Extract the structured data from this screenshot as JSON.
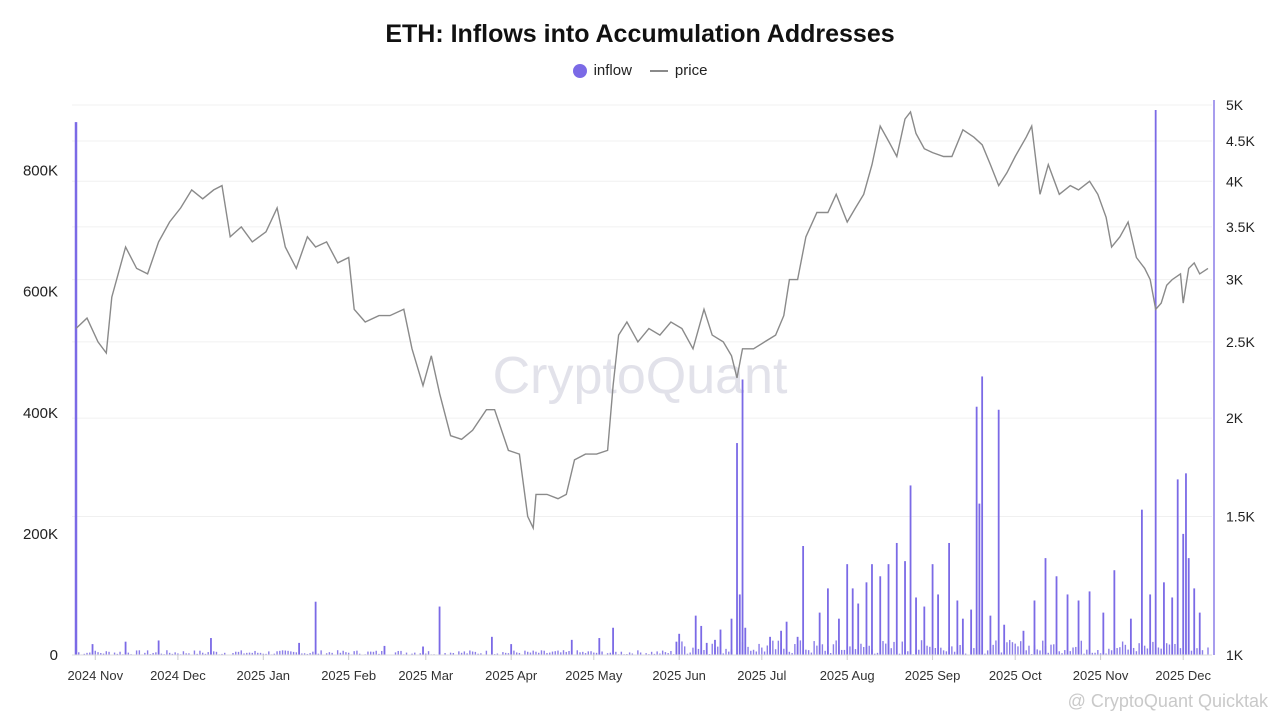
{
  "chart_data": {
    "type": "bar+line",
    "title": "ETH: Inflows into Accumulation Addresses",
    "legend": [
      {
        "name": "inflow",
        "marker": "dot",
        "color": "#7b6ae6"
      },
      {
        "name": "price",
        "marker": "line",
        "color": "#8a8a8a"
      }
    ],
    "legend_position": "top-center",
    "watermark": "CryptoQuant",
    "footer_note": "@ CryptoQuant Quicktak",
    "x_axis": {
      "start": "2024-10-25",
      "end": "2025-12-10",
      "tick_labels": [
        "2024 Nov",
        "2024 Dec",
        "2025 Jan",
        "2025 Feb",
        "2025 Mar",
        "2025 Apr",
        "2025 May",
        "2025 Jun",
        "2025 Jul",
        "2025 Aug",
        "2025 Sep",
        "2025 Oct",
        "2025 Nov",
        "2025 Dec"
      ],
      "tick_dates": [
        "2024-11-01",
        "2024-12-01",
        "2025-01-01",
        "2025-02-01",
        "2025-03-01",
        "2025-04-01",
        "2025-05-01",
        "2025-06-01",
        "2025-07-01",
        "2025-08-01",
        "2025-09-01",
        "2025-10-01",
        "2025-11-01",
        "2025-12-01"
      ]
    },
    "y_left": {
      "label": "inflow",
      "range": [
        0,
        900000
      ],
      "ticks": [
        0,
        200000,
        400000,
        600000,
        800000
      ],
      "tick_labels": [
        "0",
        "200K",
        "400K",
        "600K",
        "800K"
      ]
    },
    "y_right": {
      "label": "price",
      "scale": "log",
      "range": [
        1000,
        5000
      ],
      "ticks": [
        1000,
        1500,
        2000,
        2500,
        3000,
        3500,
        4000,
        4500,
        5000
      ],
      "tick_labels": [
        "1K",
        "1.5K",
        "2K",
        "2.5K",
        "3K",
        "3.5K",
        "4K",
        "4.5K",
        "5K"
      ]
    },
    "price_series": {
      "name": "price",
      "points": [
        [
          "2024-10-25",
          2600
        ],
        [
          "2024-10-29",
          2680
        ],
        [
          "2024-11-02",
          2500
        ],
        [
          "2024-11-05",
          2420
        ],
        [
          "2024-11-07",
          2850
        ],
        [
          "2024-11-12",
          3300
        ],
        [
          "2024-11-16",
          3100
        ],
        [
          "2024-11-20",
          3050
        ],
        [
          "2024-11-24",
          3350
        ],
        [
          "2024-11-28",
          3550
        ],
        [
          "2024-12-02",
          3700
        ],
        [
          "2024-12-06",
          3900
        ],
        [
          "2024-12-10",
          3800
        ],
        [
          "2024-12-14",
          3900
        ],
        [
          "2024-12-17",
          3950
        ],
        [
          "2024-12-20",
          3400
        ],
        [
          "2024-12-24",
          3500
        ],
        [
          "2024-12-28",
          3350
        ],
        [
          "2025-01-02",
          3450
        ],
        [
          "2025-01-06",
          3700
        ],
        [
          "2025-01-09",
          3300
        ],
        [
          "2025-01-13",
          3100
        ],
        [
          "2025-01-17",
          3400
        ],
        [
          "2025-01-20",
          3300
        ],
        [
          "2025-01-24",
          3350
        ],
        [
          "2025-01-28",
          3150
        ],
        [
          "2025-02-01",
          3200
        ],
        [
          "2025-02-03",
          2750
        ],
        [
          "2025-02-07",
          2650
        ],
        [
          "2025-02-12",
          2700
        ],
        [
          "2025-02-16",
          2700
        ],
        [
          "2025-02-21",
          2750
        ],
        [
          "2025-02-24",
          2450
        ],
        [
          "2025-02-28",
          2200
        ],
        [
          "2025-03-03",
          2400
        ],
        [
          "2025-03-06",
          2150
        ],
        [
          "2025-03-10",
          1900
        ],
        [
          "2025-03-14",
          1880
        ],
        [
          "2025-03-18",
          1930
        ],
        [
          "2025-03-23",
          2050
        ],
        [
          "2025-03-26",
          2050
        ],
        [
          "2025-03-31",
          1820
        ],
        [
          "2025-04-04",
          1800
        ],
        [
          "2025-04-07",
          1500
        ],
        [
          "2025-04-09",
          1450
        ],
        [
          "2025-04-10",
          1600
        ],
        [
          "2025-04-14",
          1600
        ],
        [
          "2025-04-18",
          1580
        ],
        [
          "2025-04-21",
          1600
        ],
        [
          "2025-04-24",
          1770
        ],
        [
          "2025-04-28",
          1800
        ],
        [
          "2025-05-02",
          1800
        ],
        [
          "2025-05-06",
          1820
        ],
        [
          "2025-05-08",
          2200
        ],
        [
          "2025-05-10",
          2550
        ],
        [
          "2025-05-13",
          2650
        ],
        [
          "2025-05-17",
          2500
        ],
        [
          "2025-05-21",
          2600
        ],
        [
          "2025-05-25",
          2550
        ],
        [
          "2025-05-29",
          2650
        ],
        [
          "2025-06-02",
          2600
        ],
        [
          "2025-06-06",
          2450
        ],
        [
          "2025-06-10",
          2750
        ],
        [
          "2025-06-13",
          2550
        ],
        [
          "2025-06-17",
          2500
        ],
        [
          "2025-06-20",
          2400
        ],
        [
          "2025-06-22",
          2250
        ],
        [
          "2025-06-24",
          2450
        ],
        [
          "2025-06-28",
          2450
        ],
        [
          "2025-07-02",
          2500
        ],
        [
          "2025-07-06",
          2550
        ],
        [
          "2025-07-09",
          2700
        ],
        [
          "2025-07-11",
          3000
        ],
        [
          "2025-07-14",
          3000
        ],
        [
          "2025-07-17",
          3400
        ],
        [
          "2025-07-21",
          3650
        ],
        [
          "2025-07-25",
          3650
        ],
        [
          "2025-07-28",
          3850
        ],
        [
          "2025-08-01",
          3550
        ],
        [
          "2025-08-04",
          3700
        ],
        [
          "2025-08-07",
          3850
        ],
        [
          "2025-08-10",
          4200
        ],
        [
          "2025-08-13",
          4700
        ],
        [
          "2025-08-16",
          4500
        ],
        [
          "2025-08-19",
          4300
        ],
        [
          "2025-08-22",
          4800
        ],
        [
          "2025-08-24",
          4900
        ],
        [
          "2025-08-26",
          4600
        ],
        [
          "2025-08-29",
          4400
        ],
        [
          "2025-09-01",
          4350
        ],
        [
          "2025-09-05",
          4300
        ],
        [
          "2025-09-08",
          4300
        ],
        [
          "2025-09-12",
          4650
        ],
        [
          "2025-09-16",
          4550
        ],
        [
          "2025-09-19",
          4450
        ],
        [
          "2025-09-22",
          4200
        ],
        [
          "2025-09-25",
          3950
        ],
        [
          "2025-09-28",
          4100
        ],
        [
          "2025-10-01",
          4300
        ],
        [
          "2025-10-05",
          4550
        ],
        [
          "2025-10-07",
          4700
        ],
        [
          "2025-10-10",
          3850
        ],
        [
          "2025-10-13",
          4200
        ],
        [
          "2025-10-17",
          3850
        ],
        [
          "2025-10-21",
          3950
        ],
        [
          "2025-10-24",
          3900
        ],
        [
          "2025-10-28",
          4000
        ],
        [
          "2025-10-31",
          3850
        ],
        [
          "2025-11-03",
          3600
        ],
        [
          "2025-11-05",
          3300
        ],
        [
          "2025-11-08",
          3400
        ],
        [
          "2025-11-11",
          3550
        ],
        [
          "2025-11-14",
          3200
        ],
        [
          "2025-11-17",
          3100
        ],
        [
          "2025-11-19",
          3000
        ],
        [
          "2025-11-21",
          2750
        ],
        [
          "2025-11-23",
          2800
        ],
        [
          "2025-11-25",
          2950
        ],
        [
          "2025-11-27",
          3000
        ],
        [
          "2025-11-30",
          3050
        ],
        [
          "2025-12-01",
          2800
        ],
        [
          "2025-12-03",
          3100
        ],
        [
          "2025-12-05",
          3150
        ],
        [
          "2025-12-07",
          3050
        ],
        [
          "2025-12-10",
          3100
        ]
      ]
    },
    "inflow_series": {
      "name": "inflow",
      "bars": [
        [
          "2024-10-25",
          880000
        ],
        [
          "2024-10-31",
          18000
        ],
        [
          "2024-11-12",
          22000
        ],
        [
          "2024-11-24",
          24000
        ],
        [
          "2024-12-13",
          28000
        ],
        [
          "2025-01-14",
          20000
        ],
        [
          "2025-01-20",
          88000
        ],
        [
          "2025-02-14",
          15000
        ],
        [
          "2025-02-28",
          14000
        ],
        [
          "2025-03-06",
          80000
        ],
        [
          "2025-03-25",
          30000
        ],
        [
          "2025-04-01",
          18000
        ],
        [
          "2025-04-23",
          25000
        ],
        [
          "2025-05-03",
          28000
        ],
        [
          "2025-05-08",
          45000
        ],
        [
          "2025-05-31",
          22000
        ],
        [
          "2025-06-01",
          35000
        ],
        [
          "2025-06-07",
          65000
        ],
        [
          "2025-06-09",
          48000
        ],
        [
          "2025-06-11",
          20000
        ],
        [
          "2025-06-14",
          25000
        ],
        [
          "2025-06-16",
          42000
        ],
        [
          "2025-06-20",
          60000
        ],
        [
          "2025-06-22",
          350000
        ],
        [
          "2025-06-23",
          100000
        ],
        [
          "2025-06-24",
          455000
        ],
        [
          "2025-06-25",
          45000
        ],
        [
          "2025-07-04",
          30000
        ],
        [
          "2025-07-08",
          40000
        ],
        [
          "2025-07-10",
          55000
        ],
        [
          "2025-07-14",
          30000
        ],
        [
          "2025-07-16",
          180000
        ],
        [
          "2025-07-22",
          70000
        ],
        [
          "2025-07-25",
          110000
        ],
        [
          "2025-07-29",
          60000
        ],
        [
          "2025-08-01",
          150000
        ],
        [
          "2025-08-03",
          110000
        ],
        [
          "2025-08-05",
          85000
        ],
        [
          "2025-08-08",
          120000
        ],
        [
          "2025-08-10",
          150000
        ],
        [
          "2025-08-13",
          130000
        ],
        [
          "2025-08-16",
          150000
        ],
        [
          "2025-08-19",
          185000
        ],
        [
          "2025-08-22",
          155000
        ],
        [
          "2025-08-24",
          280000
        ],
        [
          "2025-08-26",
          95000
        ],
        [
          "2025-08-29",
          80000
        ],
        [
          "2025-09-01",
          150000
        ],
        [
          "2025-09-03",
          100000
        ],
        [
          "2025-09-07",
          185000
        ],
        [
          "2025-09-10",
          90000
        ],
        [
          "2025-09-12",
          60000
        ],
        [
          "2025-09-15",
          75000
        ],
        [
          "2025-09-17",
          410000
        ],
        [
          "2025-09-18",
          250000
        ],
        [
          "2025-09-19",
          460000
        ],
        [
          "2025-09-22",
          65000
        ],
        [
          "2025-09-25",
          405000
        ],
        [
          "2025-09-27",
          50000
        ],
        [
          "2025-10-04",
          40000
        ],
        [
          "2025-10-08",
          90000
        ],
        [
          "2025-10-12",
          160000
        ],
        [
          "2025-10-16",
          130000
        ],
        [
          "2025-10-20",
          100000
        ],
        [
          "2025-10-24",
          90000
        ],
        [
          "2025-10-28",
          105000
        ],
        [
          "2025-11-02",
          70000
        ],
        [
          "2025-11-06",
          140000
        ],
        [
          "2025-11-12",
          60000
        ],
        [
          "2025-11-16",
          240000
        ],
        [
          "2025-11-19",
          100000
        ],
        [
          "2025-11-21",
          900000
        ],
        [
          "2025-11-24",
          120000
        ],
        [
          "2025-11-27",
          95000
        ],
        [
          "2025-11-29",
          290000
        ],
        [
          "2025-12-01",
          200000
        ],
        [
          "2025-12-02",
          300000
        ],
        [
          "2025-12-03",
          160000
        ],
        [
          "2025-12-05",
          110000
        ],
        [
          "2025-12-07",
          70000
        ]
      ]
    }
  }
}
